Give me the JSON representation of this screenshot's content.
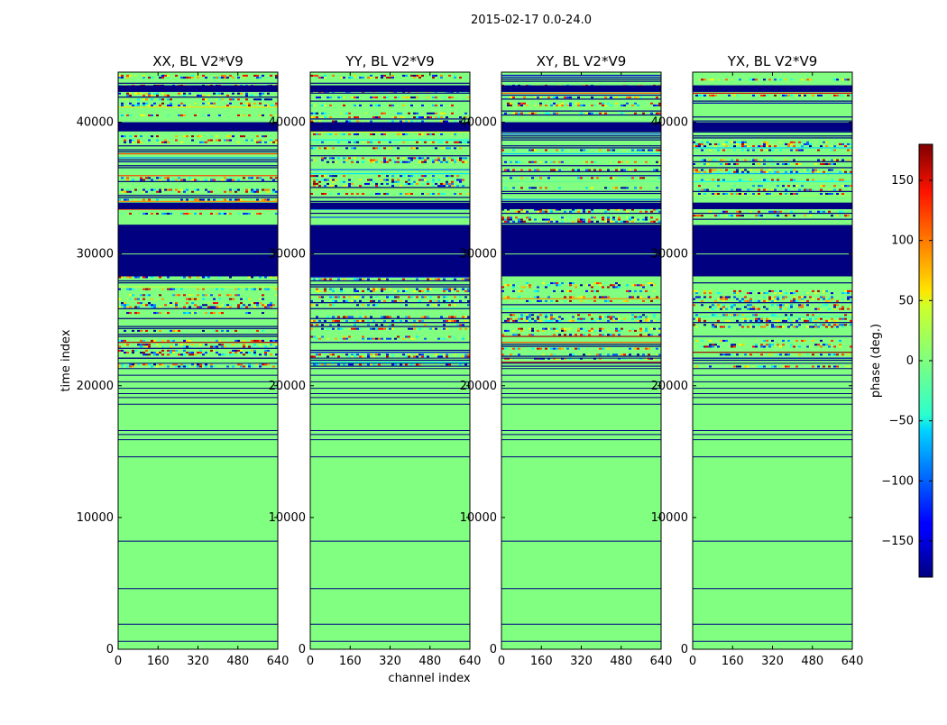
{
  "chart_data": {
    "type": "heatmap",
    "suptitle": "2015-02-17 0.0-24.0",
    "xlabel": "channel index",
    "ylabel": "time index",
    "xlim": [
      0,
      640
    ],
    "ylim": [
      0,
      43800
    ],
    "xticks": [
      0,
      160,
      320,
      480,
      640
    ],
    "yticks": [
      0,
      10000,
      20000,
      30000,
      40000
    ],
    "colorbar": {
      "label": "phase (deg.)",
      "range": [
        -180,
        180
      ],
      "ticks": [
        -150,
        -100,
        -50,
        0,
        50,
        100,
        150
      ],
      "colormap": "jet"
    },
    "panels": [
      {
        "title": "XX, BL V2*V9"
      },
      {
        "title": "YY, BL V2*V9"
      },
      {
        "title": "XY, BL V2*V9"
      },
      {
        "title": "YX, BL V2*V9"
      }
    ],
    "solid_bands_deg_-180": [
      [
        28300,
        32200
      ],
      [
        39300,
        40000
      ],
      [
        42300,
        42800
      ],
      [
        33400,
        33900
      ]
    ],
    "noisy_time_ranges": [
      [
        21500,
        28300
      ],
      [
        32200,
        39300
      ],
      [
        40000,
        43600
      ]
    ],
    "flag_lines": [
      600,
      1900,
      4600,
      8200,
      14600,
      15900,
      16300,
      16600,
      18600,
      19100,
      19400,
      19800,
      20300,
      20800,
      21300,
      21700,
      22100
    ]
  }
}
